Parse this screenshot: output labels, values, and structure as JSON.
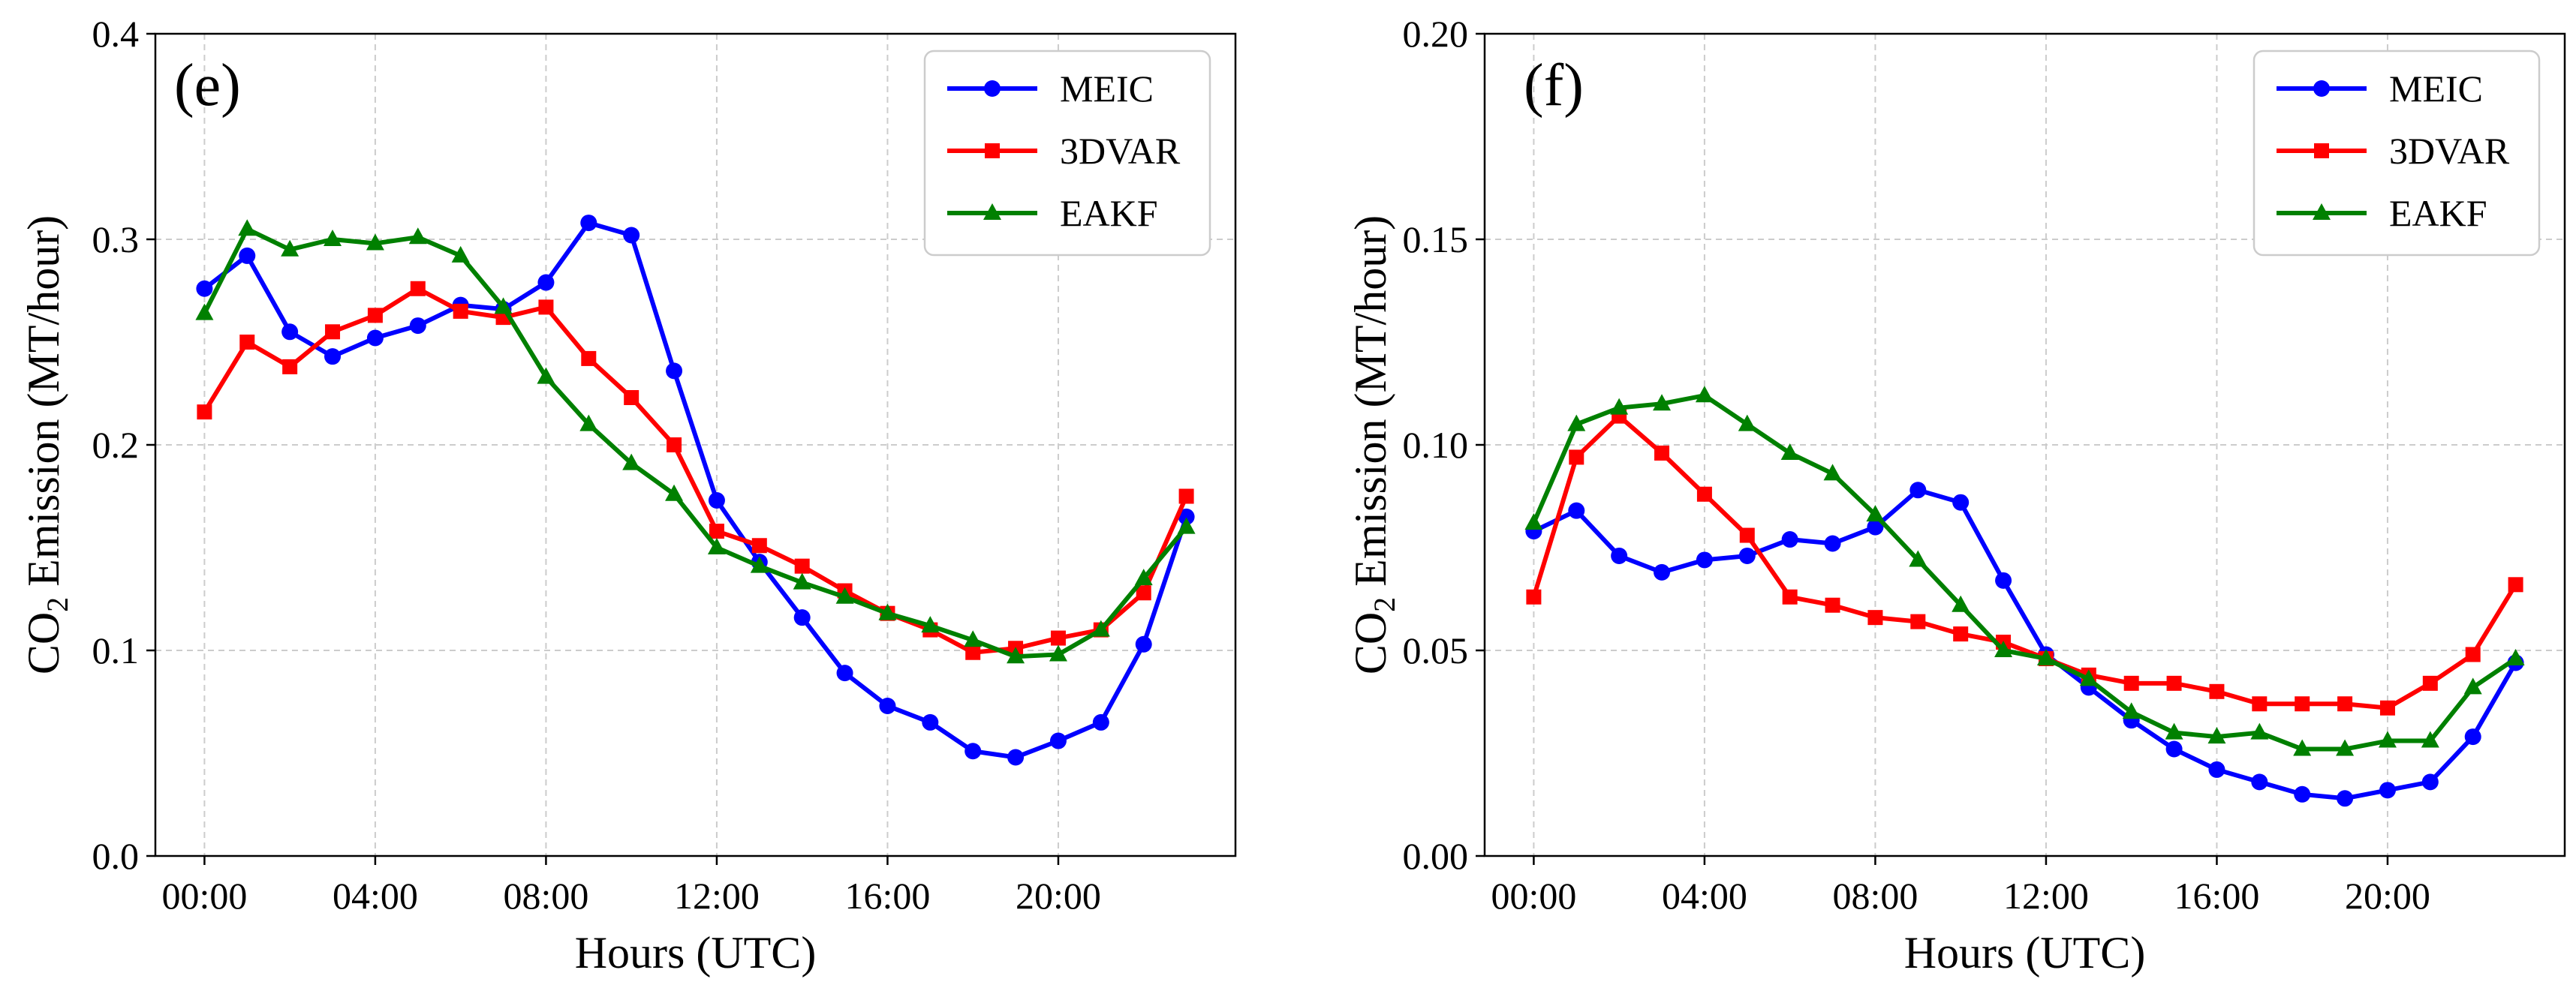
{
  "chart_data": [
    {
      "type": "line",
      "panel": "(e)",
      "xlabel": "Hours (UTC)",
      "ylabel": "Emission (MT/hour)",
      "ylabel_prefix": "CO",
      "ylabel_subscript": "2",
      "ylim": [
        0,
        0.4
      ],
      "yticks": [
        0.0,
        0.1,
        0.2,
        0.3,
        0.4
      ],
      "ytick_labels": [
        "0.0",
        "0.1",
        "0.2",
        "0.3",
        "0.4"
      ],
      "xticks": [
        0,
        4,
        8,
        12,
        16,
        20
      ],
      "xtick_labels": [
        "00:00",
        "04:00",
        "08:00",
        "12:00",
        "16:00",
        "20:00"
      ],
      "x": [
        0,
        1,
        2,
        3,
        4,
        5,
        6,
        7,
        8,
        9,
        10,
        11,
        12,
        13,
        14,
        15,
        16,
        17,
        18,
        19,
        20,
        21,
        22,
        23
      ],
      "grid": true,
      "legend_position": "top-right",
      "series": [
        {
          "name": "MEIC",
          "color": "#0000ff",
          "marker": "circle",
          "values": [
            0.276,
            0.292,
            0.255,
            0.243,
            0.252,
            0.258,
            0.268,
            0.266,
            0.279,
            0.308,
            0.302,
            0.236,
            0.173,
            0.143,
            0.116,
            0.089,
            0.073,
            0.065,
            0.051,
            0.048,
            0.056,
            0.065,
            0.103,
            0.165
          ]
        },
        {
          "name": "3DVAR",
          "color": "#ff0000",
          "marker": "square",
          "values": [
            0.216,
            0.25,
            0.238,
            0.255,
            0.263,
            0.276,
            0.265,
            0.262,
            0.267,
            0.242,
            0.223,
            0.2,
            0.158,
            0.151,
            0.141,
            0.129,
            0.118,
            0.11,
            0.099,
            0.101,
            0.106,
            0.11,
            0.128,
            0.175
          ]
        },
        {
          "name": "EAKF",
          "color": "#008000",
          "marker": "triangle",
          "values": [
            0.264,
            0.305,
            0.295,
            0.3,
            0.298,
            0.301,
            0.292,
            0.267,
            0.233,
            0.21,
            0.191,
            0.176,
            0.15,
            0.141,
            0.133,
            0.126,
            0.118,
            0.112,
            0.105,
            0.097,
            0.098,
            0.11,
            0.135,
            0.16
          ]
        }
      ]
    },
    {
      "type": "line",
      "panel": "(f)",
      "xlabel": "Hours (UTC)",
      "ylabel": "Emission (MT/hour)",
      "ylabel_prefix": "CO",
      "ylabel_subscript": "2",
      "ylim": [
        0,
        0.2
      ],
      "yticks": [
        0.0,
        0.05,
        0.1,
        0.15,
        0.2
      ],
      "ytick_labels": [
        "0.00",
        "0.05",
        "0.10",
        "0.15",
        "0.20"
      ],
      "xticks": [
        0,
        4,
        8,
        12,
        16,
        20
      ],
      "xtick_labels": [
        "00:00",
        "04:00",
        "08:00",
        "12:00",
        "16:00",
        "20:00"
      ],
      "x": [
        0,
        1,
        2,
        3,
        4,
        5,
        6,
        7,
        8,
        9,
        10,
        11,
        12,
        13,
        14,
        15,
        16,
        17,
        18,
        19,
        20,
        21,
        22,
        23
      ],
      "grid": true,
      "legend_position": "top-right",
      "series": [
        {
          "name": "MEIC",
          "color": "#0000ff",
          "marker": "circle",
          "values": [
            0.079,
            0.084,
            0.073,
            0.069,
            0.072,
            0.073,
            0.077,
            0.076,
            0.08,
            0.089,
            0.086,
            0.067,
            0.049,
            0.041,
            0.033,
            0.026,
            0.021,
            0.018,
            0.015,
            0.014,
            0.016,
            0.018,
            0.029,
            0.047
          ]
        },
        {
          "name": "3DVAR",
          "color": "#ff0000",
          "marker": "square",
          "values": [
            0.063,
            0.097,
            0.107,
            0.098,
            0.088,
            0.078,
            0.063,
            0.061,
            0.058,
            0.057,
            0.054,
            0.052,
            0.048,
            0.044,
            0.042,
            0.042,
            0.04,
            0.037,
            0.037,
            0.037,
            0.036,
            0.042,
            0.049,
            0.066
          ]
        },
        {
          "name": "EAKF",
          "color": "#008000",
          "marker": "triangle",
          "values": [
            0.081,
            0.105,
            0.109,
            0.11,
            0.112,
            0.105,
            0.098,
            0.093,
            0.083,
            0.072,
            0.061,
            0.05,
            0.048,
            0.043,
            0.035,
            0.03,
            0.029,
            0.03,
            0.026,
            0.026,
            0.028,
            0.028,
            0.041,
            0.048
          ]
        }
      ]
    }
  ]
}
